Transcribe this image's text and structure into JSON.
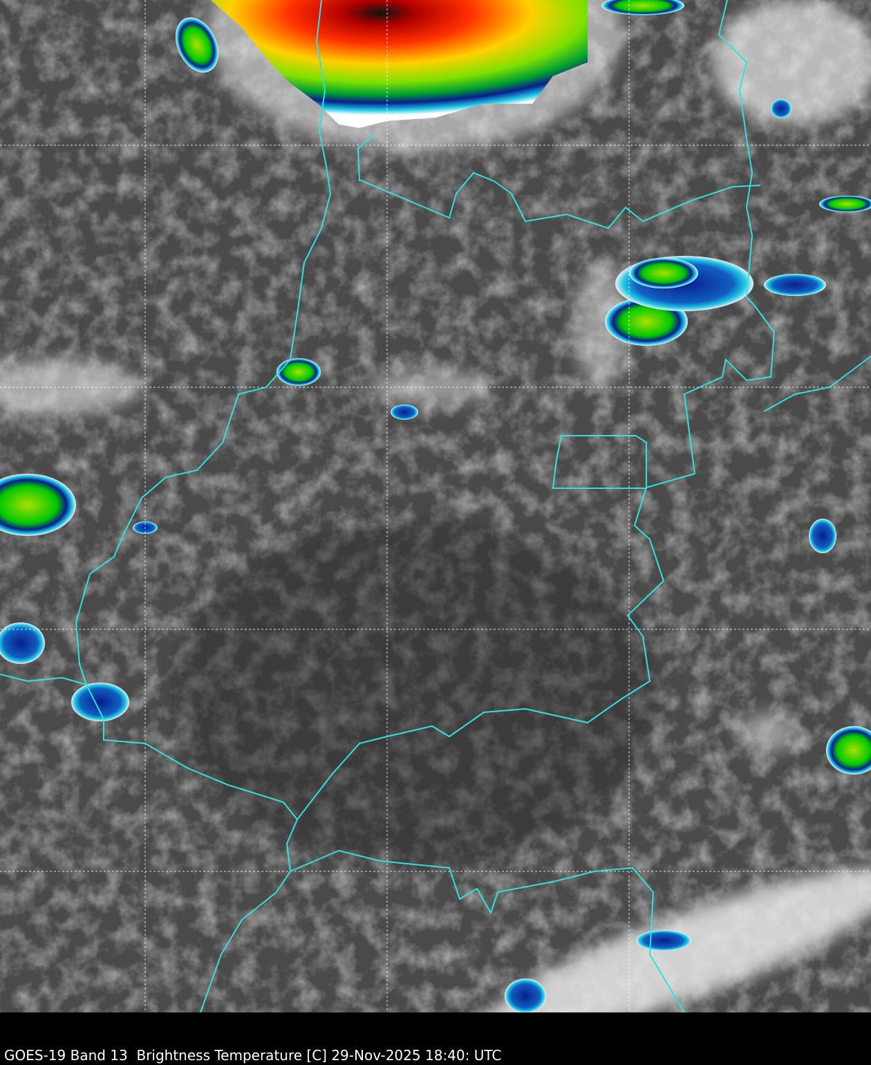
{
  "caption": "GOES-19 Band 13  Brightness Temperature [C] 29-Nov-2025 18:40: UTC",
  "map": {
    "type": "satellite infrared imagery",
    "background_color": "#4a4a4a",
    "border_color": "#33e0e0",
    "grid": true,
    "grid_color": "#ffffff",
    "colormap": [
      "#ffffff",
      "#1ec8e6",
      "#0a1e8c",
      "#00c800",
      "#ffff00",
      "#ff0000",
      "#000000"
    ]
  }
}
